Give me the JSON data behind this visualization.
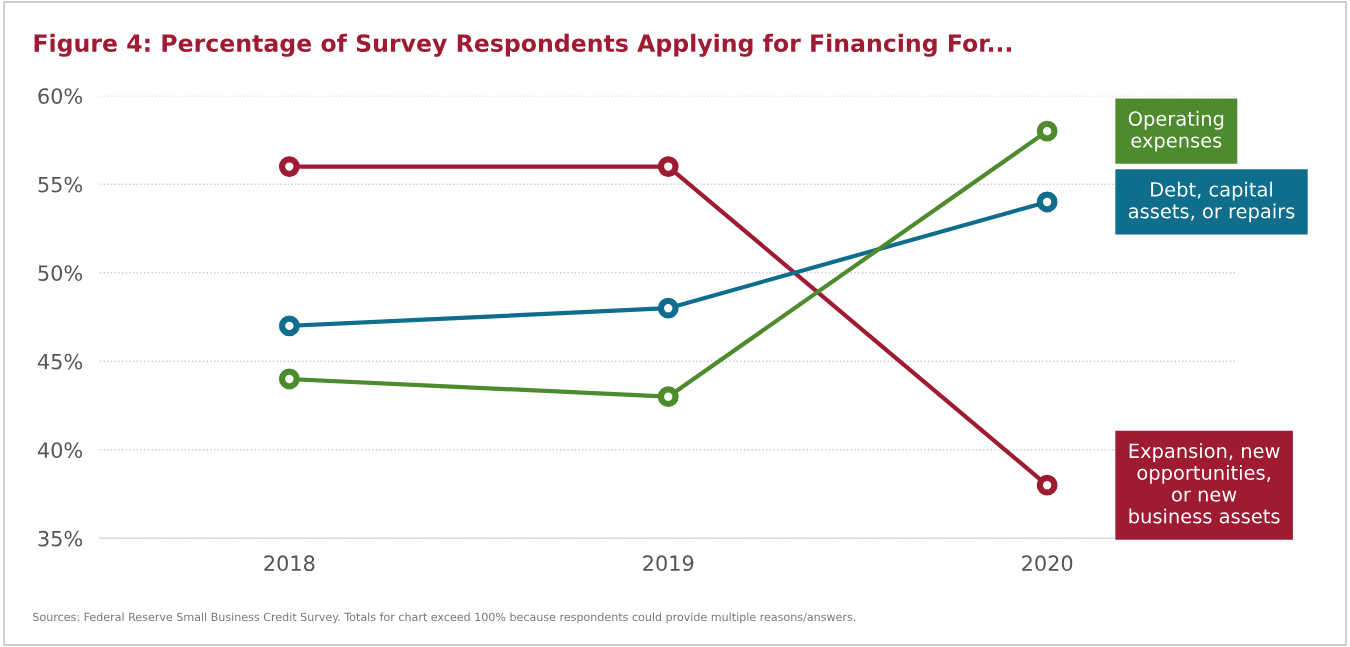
{
  "chart_data": {
    "type": "line",
    "title": "Figure 4: Percentage of Survey Respondents Applying for Financing For...",
    "categories": [
      "2018",
      "2019",
      "2020"
    ],
    "series": [
      {
        "name": "Expansion, new\nopportunities,\nor new\nbusiness assets",
        "color": "#9e1b32",
        "values": [
          56,
          56,
          38
        ]
      },
      {
        "name": "Debt, capital\nassets, or repairs",
        "color": "#0f6e8c",
        "values": [
          47,
          48,
          54
        ]
      },
      {
        "name": "Operating\nexpenses",
        "color": "#4e8a2e",
        "values": [
          44,
          43,
          58
        ]
      }
    ],
    "ylim": [
      35,
      60
    ],
    "yticks": [
      {
        "value": 35,
        "label": "35%"
      },
      {
        "value": 40,
        "label": "40%"
      },
      {
        "value": 45,
        "label": "45%"
      },
      {
        "value": 50,
        "label": "50%"
      },
      {
        "value": 55,
        "label": "55%"
      },
      {
        "value": 60,
        "label": "60%"
      }
    ],
    "grid": "y",
    "legend": false,
    "marker": "circle",
    "line_style": "solid",
    "annotations": [
      "Sources: Federal Reserve Small Business Credit Survey. Totals for chart exceed 100% because respondents could provide multiple reasons/answers."
    ]
  }
}
